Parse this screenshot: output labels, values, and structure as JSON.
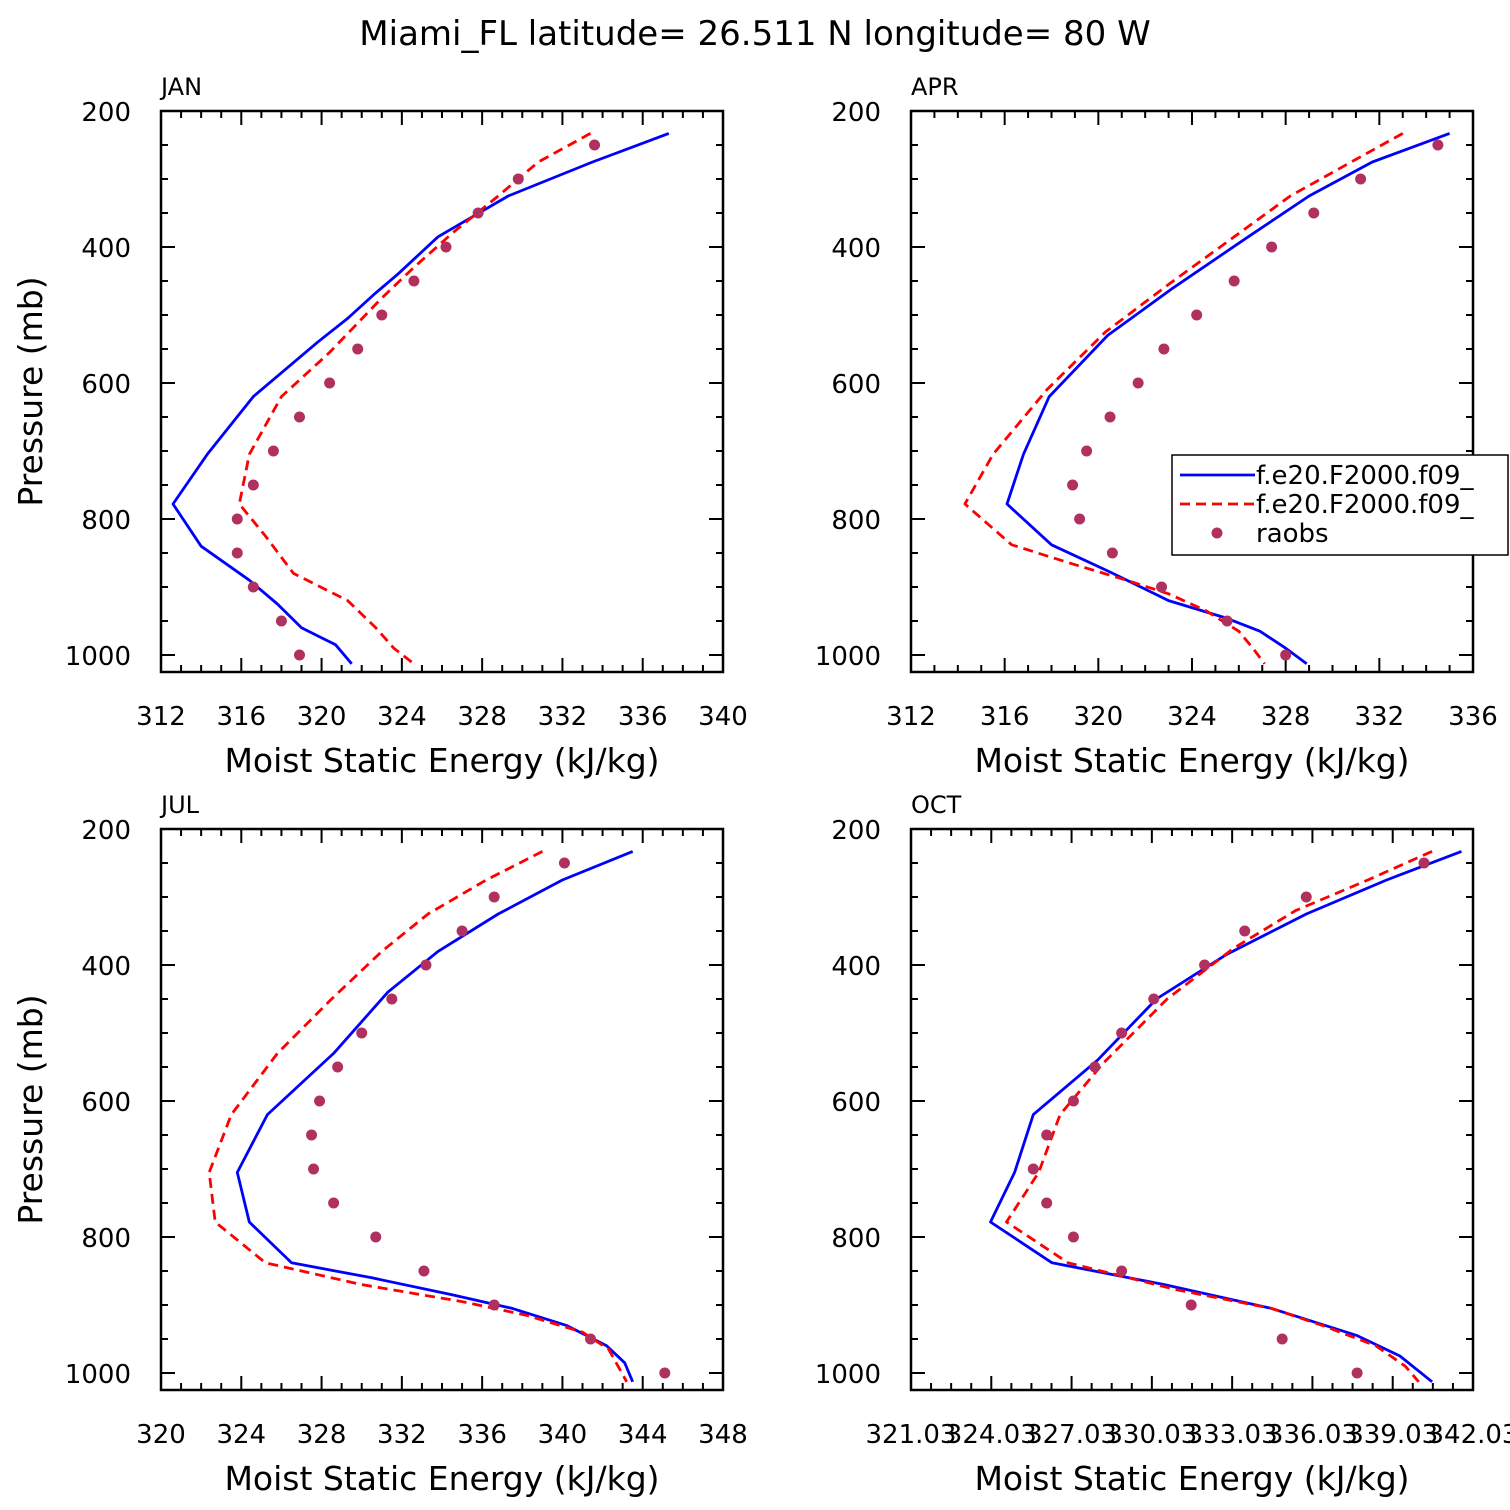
{
  "figure": {
    "title": "Miami_FL  latitude= 26.511 N longitude= 80 W"
  },
  "legend": {
    "entries": [
      {
        "label": "f.e20.F2000.f09_",
        "color": "#0000ff",
        "style": "solid"
      },
      {
        "label": "f.e20.F2000.f09_",
        "color": "#ff0000",
        "style": "dashed"
      },
      {
        "label": "raobs",
        "color": "#b03060",
        "style": "marker"
      }
    ]
  },
  "chart_data": [
    {
      "type": "line",
      "panel": "JAN",
      "xlabel": "Moist Static Energy (kJ/kg)",
      "ylabel": "Pressure (mb)",
      "xlim": [
        312,
        340
      ],
      "ylim": [
        1025,
        200
      ],
      "xticks": [
        "312",
        "316",
        "320",
        "324",
        "328",
        "332",
        "336",
        "340"
      ],
      "yticks": [
        "200",
        "400",
        "600",
        "800",
        "1000"
      ],
      "series": [
        {
          "color": "#0000ff",
          "style": "solid",
          "points": [
            [
              337.3,
              233
            ],
            [
              333.5,
              275
            ],
            [
              329.3,
              325
            ],
            [
              325.8,
              385
            ],
            [
              323.8,
              440
            ],
            [
              322.6,
              470
            ],
            [
              321.3,
              505
            ],
            [
              319.8,
              540
            ],
            [
              316.6,
              620
            ],
            [
              314.3,
              705
            ],
            [
              312.6,
              778
            ],
            [
              314.0,
              840
            ],
            [
              316.4,
              890
            ],
            [
              317.8,
              925
            ],
            [
              319.0,
              960
            ],
            [
              320.7,
              985
            ],
            [
              321.5,
              1013
            ]
          ]
        },
        {
          "color": "#ff0000",
          "style": "dashed",
          "points": [
            [
              333.4,
              233
            ],
            [
              330.8,
              275
            ],
            [
              328.8,
              325
            ],
            [
              326.5,
              380
            ],
            [
              324.6,
              430
            ],
            [
              323.0,
              475
            ],
            [
              320.4,
              555
            ],
            [
              318.0,
              620
            ],
            [
              316.4,
              705
            ],
            [
              315.9,
              778
            ],
            [
              317.2,
              825
            ],
            [
              318.6,
              880
            ],
            [
              321.3,
              920
            ],
            [
              322.7,
              960
            ],
            [
              323.6,
              990
            ],
            [
              324.6,
              1013
            ]
          ]
        },
        {
          "color": "#b03060",
          "style": "marker",
          "points": [
            [
              333.6,
              250
            ],
            [
              329.8,
              300
            ],
            [
              327.8,
              350
            ],
            [
              326.2,
              400
            ],
            [
              324.6,
              450
            ],
            [
              323.0,
              500
            ],
            [
              321.8,
              550
            ],
            [
              320.4,
              600
            ],
            [
              318.9,
              650
            ],
            [
              317.6,
              700
            ],
            [
              316.6,
              750
            ],
            [
              315.8,
              800
            ],
            [
              315.8,
              850
            ],
            [
              316.6,
              900
            ],
            [
              318.0,
              950
            ],
            [
              318.9,
              1000
            ]
          ]
        }
      ]
    },
    {
      "type": "line",
      "panel": "APR",
      "xlabel": "Moist Static Energy (kJ/kg)",
      "ylabel": "",
      "xlim": [
        312,
        336
      ],
      "ylim": [
        1025,
        200
      ],
      "xticks": [
        "312",
        "316",
        "320",
        "324",
        "328",
        "332",
        "336"
      ],
      "yticks": [
        "200",
        "400",
        "600",
        "800",
        "1000"
      ],
      "series": [
        {
          "color": "#0000ff",
          "style": "solid",
          "points": [
            [
              335.0,
              233
            ],
            [
              331.7,
              275
            ],
            [
              329.0,
              325
            ],
            [
              326.4,
              385
            ],
            [
              323.2,
              460
            ],
            [
              320.4,
              530
            ],
            [
              317.9,
              620
            ],
            [
              316.8,
              705
            ],
            [
              316.1,
              778
            ],
            [
              318.0,
              838
            ],
            [
              320.5,
              878
            ],
            [
              323.0,
              920
            ],
            [
              325.4,
              945
            ],
            [
              326.9,
              965
            ],
            [
              328.0,
              990
            ],
            [
              328.9,
              1013
            ]
          ]
        },
        {
          "color": "#ff0000",
          "style": "dashed",
          "points": [
            [
              333.0,
              233
            ],
            [
              330.8,
              275
            ],
            [
              328.2,
              325
            ],
            [
              325.8,
              385
            ],
            [
              323.0,
              455
            ],
            [
              320.3,
              525
            ],
            [
              317.8,
              610
            ],
            [
              315.5,
              705
            ],
            [
              314.3,
              778
            ],
            [
              316.3,
              838
            ],
            [
              318.8,
              865
            ],
            [
              321.2,
              890
            ],
            [
              323.0,
              910
            ],
            [
              324.6,
              935
            ],
            [
              326.0,
              965
            ],
            [
              326.6,
              990
            ],
            [
              327.1,
              1013
            ]
          ]
        },
        {
          "color": "#b03060",
          "style": "marker",
          "points": [
            [
              334.5,
              250
            ],
            [
              331.2,
              300
            ],
            [
              329.2,
              350
            ],
            [
              327.4,
              400
            ],
            [
              325.8,
              450
            ],
            [
              324.2,
              500
            ],
            [
              322.8,
              550
            ],
            [
              321.7,
              600
            ],
            [
              320.5,
              650
            ],
            [
              319.5,
              700
            ],
            [
              318.9,
              750
            ],
            [
              319.2,
              800
            ],
            [
              320.6,
              850
            ],
            [
              322.7,
              900
            ],
            [
              325.5,
              950
            ],
            [
              328.0,
              1000
            ]
          ]
        }
      ]
    },
    {
      "type": "line",
      "panel": "JUL",
      "xlabel": "Moist Static Energy (kJ/kg)",
      "ylabel": "Pressure (mb)",
      "xlim": [
        320,
        348
      ],
      "ylim": [
        1025,
        200
      ],
      "xticks": [
        "320",
        "324",
        "328",
        "332",
        "336",
        "340",
        "344",
        "348"
      ],
      "yticks": [
        "200",
        "400",
        "600",
        "800",
        "1000"
      ],
      "series": [
        {
          "color": "#0000ff",
          "style": "solid",
          "points": [
            [
              343.5,
              233
            ],
            [
              340.0,
              275
            ],
            [
              336.8,
              325
            ],
            [
              333.8,
              380
            ],
            [
              331.3,
              440
            ],
            [
              328.6,
              530
            ],
            [
              325.3,
              620
            ],
            [
              323.8,
              705
            ],
            [
              324.4,
              778
            ],
            [
              326.5,
              838
            ],
            [
              330.5,
              860
            ],
            [
              334.5,
              885
            ],
            [
              337.5,
              905
            ],
            [
              340.2,
              930
            ],
            [
              342.2,
              960
            ],
            [
              343.1,
              985
            ],
            [
              343.5,
              1013
            ]
          ]
        },
        {
          "color": "#ff0000",
          "style": "dashed",
          "points": [
            [
              339.0,
              233
            ],
            [
              336.2,
              275
            ],
            [
              333.3,
              325
            ],
            [
              331.0,
              380
            ],
            [
              328.5,
              450
            ],
            [
              325.8,
              530
            ],
            [
              323.5,
              620
            ],
            [
              322.4,
              705
            ],
            [
              322.7,
              778
            ],
            [
              325.2,
              838
            ],
            [
              330.0,
              870
            ],
            [
              335.0,
              895
            ],
            [
              338.2,
              915
            ],
            [
              341.0,
              940
            ],
            [
              342.3,
              965
            ],
            [
              343.2,
              1013
            ]
          ]
        },
        {
          "color": "#b03060",
          "style": "marker",
          "points": [
            [
              340.1,
              250
            ],
            [
              336.6,
              300
            ],
            [
              335.0,
              350
            ],
            [
              333.2,
              400
            ],
            [
              331.5,
              450
            ],
            [
              330.0,
              500
            ],
            [
              328.8,
              550
            ],
            [
              327.9,
              600
            ],
            [
              327.5,
              650
            ],
            [
              327.6,
              700
            ],
            [
              328.6,
              750
            ],
            [
              330.7,
              800
            ],
            [
              333.1,
              850
            ],
            [
              336.6,
              900
            ],
            [
              341.4,
              950
            ],
            [
              345.1,
              1000
            ]
          ]
        }
      ]
    },
    {
      "type": "line",
      "panel": "OCT",
      "xlabel": "Moist Static Energy (kJ/kg)",
      "ylabel": "",
      "xlim": [
        321.03,
        342.03
      ],
      "ylim": [
        1025,
        200
      ],
      "xticks": [
        "321.03",
        "324.03",
        "327.03",
        "330.03",
        "333.03",
        "336.03",
        "339.03",
        "342.03"
      ],
      "yticks": [
        "200",
        "400",
        "600",
        "800",
        "1000"
      ],
      "series": [
        {
          "color": "#0000ff",
          "style": "solid",
          "points": [
            [
              341.6,
              233
            ],
            [
              338.8,
              275
            ],
            [
              335.8,
              325
            ],
            [
              332.8,
              385
            ],
            [
              330.2,
              450
            ],
            [
              328.0,
              540
            ],
            [
              325.6,
              620
            ],
            [
              324.9,
              705
            ],
            [
              324.0,
              778
            ],
            [
              326.3,
              838
            ],
            [
              330.5,
              870
            ],
            [
              334.5,
              905
            ],
            [
              337.7,
              945
            ],
            [
              339.3,
              975
            ],
            [
              340.5,
              1013
            ]
          ]
        },
        {
          "color": "#ff0000",
          "style": "dashed",
          "points": [
            [
              340.5,
              233
            ],
            [
              338.1,
              275
            ],
            [
              335.4,
              320
            ],
            [
              333.1,
              375
            ],
            [
              330.6,
              450
            ],
            [
              328.2,
              545
            ],
            [
              326.6,
              620
            ],
            [
              325.8,
              705
            ],
            [
              324.6,
              778
            ],
            [
              326.9,
              838
            ],
            [
              331.0,
              878
            ],
            [
              334.5,
              905
            ],
            [
              336.4,
              930
            ],
            [
              338.4,
              960
            ],
            [
              339.5,
              990
            ],
            [
              340.0,
              1013
            ]
          ]
        },
        {
          "color": "#b03060",
          "style": "marker",
          "points": [
            [
              340.2,
              250
            ],
            [
              335.8,
              300
            ],
            [
              333.5,
              350
            ],
            [
              332.0,
              400
            ],
            [
              330.1,
              450
            ],
            [
              328.9,
              500
            ],
            [
              327.9,
              550
            ],
            [
              327.1,
              600
            ],
            [
              326.1,
              650
            ],
            [
              325.6,
              700
            ],
            [
              326.1,
              750
            ],
            [
              327.1,
              800
            ],
            [
              328.9,
              850
            ],
            [
              331.5,
              900
            ],
            [
              334.9,
              950
            ],
            [
              337.7,
              1000
            ]
          ]
        }
      ]
    }
  ]
}
